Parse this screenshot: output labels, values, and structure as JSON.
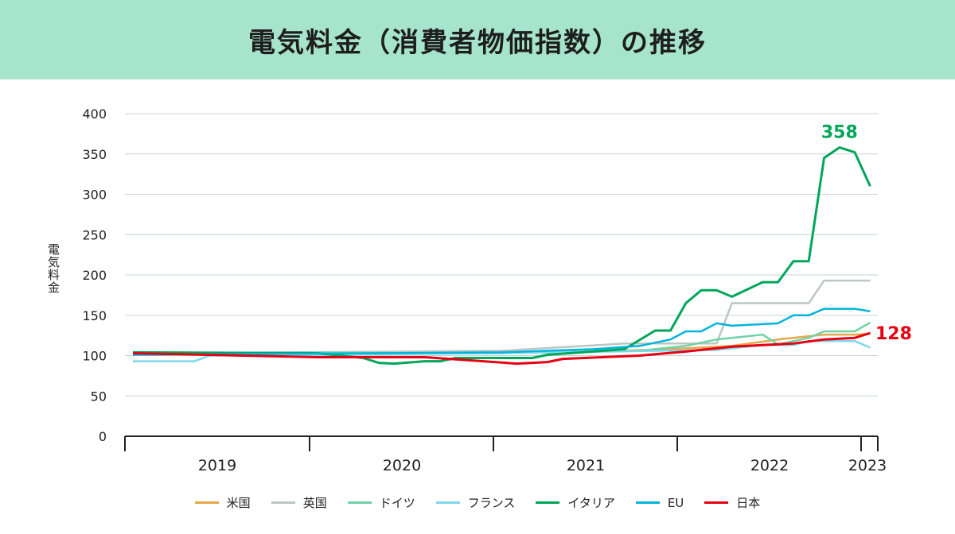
{
  "header": {
    "title": "電気料金（消費者物価指数）の推移"
  },
  "chart_data": {
    "type": "line",
    "title": "電気料金（消費者物価指数）の推移",
    "ylabel": "電気料金",
    "xlabel": "",
    "ylim": [
      0,
      400
    ],
    "yticks": [
      0,
      50,
      100,
      150,
      200,
      250,
      300,
      350,
      400
    ],
    "xticks": [
      "2019",
      "2020",
      "2021",
      "2022",
      "2023"
    ],
    "grid": "horizontal",
    "legend_position": "bottom",
    "annotations": [
      {
        "series": "イタリア",
        "text": "358",
        "date": "2022-11",
        "value": 358
      },
      {
        "series": "日本",
        "text": "128",
        "date": "2023-01",
        "value": 128
      }
    ],
    "series": [
      {
        "name": "米国",
        "color": "#e6a84a",
        "points": [
          [
            "2019-01",
            102
          ],
          [
            "2021-01",
            103
          ],
          [
            "2021-07",
            105
          ],
          [
            "2021-12",
            108
          ],
          [
            "2022-04",
            112
          ],
          [
            "2022-07",
            120
          ],
          [
            "2022-10",
            126
          ],
          [
            "2022-12",
            126
          ],
          [
            "2023-01",
            127
          ]
        ]
      },
      {
        "name": "英国",
        "color": "#bac7c3",
        "points": [
          [
            "2019-01",
            101
          ],
          [
            "2019-04",
            103
          ],
          [
            "2021-01",
            106
          ],
          [
            "2021-09",
            115
          ],
          [
            "2022-03",
            115
          ],
          [
            "2022-04",
            165
          ],
          [
            "2022-09",
            165
          ],
          [
            "2022-10",
            193
          ],
          [
            "2023-01",
            193
          ]
        ]
      },
      {
        "name": "ドイツ",
        "color": "#6fd3a8",
        "points": [
          [
            "2019-01",
            104
          ],
          [
            "2021-01",
            103
          ],
          [
            "2021-10",
            106
          ],
          [
            "2022-01",
            112
          ],
          [
            "2022-03",
            120
          ],
          [
            "2022-06",
            126
          ],
          [
            "2022-07",
            114
          ],
          [
            "2022-09",
            122
          ],
          [
            "2022-10",
            130
          ],
          [
            "2022-12",
            130
          ],
          [
            "2023-01",
            141
          ]
        ]
      },
      {
        "name": "フランス",
        "color": "#7ed8ec",
        "points": [
          [
            "2019-01",
            93
          ],
          [
            "2019-05",
            93
          ],
          [
            "2019-06",
            100
          ],
          [
            "2021-01",
            103
          ],
          [
            "2022-03",
            107
          ],
          [
            "2022-06",
            113
          ],
          [
            "2022-08",
            113
          ],
          [
            "2022-09",
            118
          ],
          [
            "2022-12",
            118
          ],
          [
            "2023-01",
            110
          ]
        ]
      },
      {
        "name": "イタリア",
        "color": "#00a65a",
        "points": [
          [
            "2019-01",
            104
          ],
          [
            "2020-01",
            103
          ],
          [
            "2020-04",
            97
          ],
          [
            "2020-05",
            91
          ],
          [
            "2020-06",
            90
          ],
          [
            "2020-08",
            93
          ],
          [
            "2020-09",
            93
          ],
          [
            "2020-10",
            97
          ],
          [
            "2021-03",
            97
          ],
          [
            "2021-04",
            101
          ],
          [
            "2021-09",
            108
          ],
          [
            "2021-11",
            131
          ],
          [
            "2021-12",
            131
          ],
          [
            "2022-01",
            165
          ],
          [
            "2022-02",
            181
          ],
          [
            "2022-03",
            181
          ],
          [
            "2022-04",
            173
          ],
          [
            "2022-06",
            191
          ],
          [
            "2022-07",
            191
          ],
          [
            "2022-08",
            217
          ],
          [
            "2022-09",
            217
          ],
          [
            "2022-10",
            345
          ],
          [
            "2022-11",
            358
          ],
          [
            "2022-12",
            352
          ],
          [
            "2023-01",
            310
          ]
        ]
      },
      {
        "name": "EU",
        "color": "#00b4dc",
        "points": [
          [
            "2019-01",
            101
          ],
          [
            "2021-01",
            104
          ],
          [
            "2021-07",
            108
          ],
          [
            "2021-10",
            112
          ],
          [
            "2021-12",
            120
          ],
          [
            "2022-01",
            130
          ],
          [
            "2022-02",
            130
          ],
          [
            "2022-03",
            140
          ],
          [
            "2022-04",
            137
          ],
          [
            "2022-06",
            139
          ],
          [
            "2022-07",
            140
          ],
          [
            "2022-08",
            150
          ],
          [
            "2022-09",
            150
          ],
          [
            "2022-10",
            158
          ],
          [
            "2022-12",
            158
          ],
          [
            "2023-01",
            155
          ]
        ]
      },
      {
        "name": "日本",
        "color": "#e60012",
        "points": [
          [
            "2019-01",
            103
          ],
          [
            "2020-01",
            98
          ],
          [
            "2020-08",
            98
          ],
          [
            "2021-02",
            90
          ],
          [
            "2021-04",
            92
          ],
          [
            "2021-05",
            96
          ],
          [
            "2021-10",
            100
          ],
          [
            "2022-01",
            105
          ],
          [
            "2022-04",
            111
          ],
          [
            "2022-08",
            115
          ],
          [
            "2022-10",
            120
          ],
          [
            "2022-12",
            122
          ],
          [
            "2023-01",
            128
          ]
        ]
      }
    ]
  }
}
